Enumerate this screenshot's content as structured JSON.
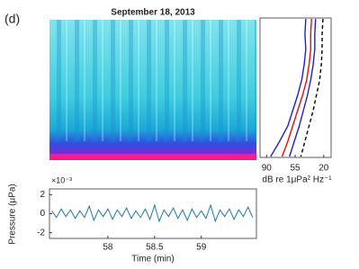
{
  "panel_label": "(d)",
  "chart_data": [
    {
      "type": "spectrogram",
      "title": "September 18, 2013"
    },
    {
      "type": "profile",
      "xlabel": "dB re 1μPa² Hz⁻¹",
      "xlim": [
        98,
        11
      ],
      "xticks": [
        90,
        55,
        20
      ],
      "series": [
        {
          "color": "#1f1fd0",
          "dash": false,
          "values": [
            42,
            43,
            42,
            44,
            47,
            52,
            58,
            64,
            74,
            85
          ]
        },
        {
          "color": "#e01010",
          "dash": false,
          "values": [
            35,
            36,
            36,
            38,
            41,
            46,
            52,
            58,
            64,
            71
          ]
        },
        {
          "color": "#1f1fd0",
          "dash": false,
          "values": [
            30,
            31,
            31,
            33,
            36,
            40,
            45,
            50,
            56,
            62
          ]
        },
        {
          "color": "#000000",
          "dash": true,
          "values": [
            21,
            22,
            22,
            23,
            25,
            29,
            33,
            38,
            43,
            48
          ]
        }
      ]
    },
    {
      "type": "line",
      "xlabel": "Time (min)",
      "ylabel": "Pressure (μPa)",
      "multiplier": "×10⁻³",
      "xlim": [
        57.375,
        59.59
      ],
      "xticks": [
        58,
        58.5,
        59
      ],
      "ylim": [
        -0.0026,
        0.0026
      ],
      "yticks": [
        {
          "value": -0.002,
          "label": "-2"
        },
        {
          "value": 0,
          "label": "0"
        },
        {
          "value": 0.002,
          "label": "2"
        }
      ],
      "color": "#1f77b4",
      "x": [
        57.4,
        57.45,
        57.5,
        57.55,
        57.6,
        57.65,
        57.7,
        57.75,
        57.8,
        57.85,
        57.9,
        57.95,
        58.0,
        58.05,
        58.1,
        58.15,
        58.2,
        58.25,
        58.3,
        58.35,
        58.4,
        58.45,
        58.5,
        58.55,
        58.6,
        58.65,
        58.7,
        58.75,
        58.8,
        58.85,
        58.9,
        58.95,
        59.0,
        59.05,
        59.1,
        59.15,
        59.2,
        59.25,
        59.3,
        59.35,
        59.4,
        59.45,
        59.5,
        59.55
      ],
      "values": [
        0.0003,
        -0.0004,
        0.0005,
        -0.0003,
        0.0004,
        -0.0005,
        0.0003,
        -0.0004,
        0.0008,
        -0.0007,
        0.0004,
        -0.0003,
        0.0005,
        -0.0006,
        0.0004,
        -0.0003,
        0.0006,
        -0.0005,
        0.0003,
        -0.0004,
        0.0005,
        -0.0006,
        0.0009,
        -0.0008,
        0.0004,
        -0.0003,
        0.0006,
        -0.0005,
        0.0004,
        -0.0007,
        0.0005,
        -0.0004,
        0.0003,
        -0.0005,
        0.0009,
        -0.0008,
        0.0004,
        -0.0003,
        0.0005,
        -0.0006,
        0.0004,
        -0.0003,
        0.0007,
        -0.0004
      ]
    }
  ]
}
